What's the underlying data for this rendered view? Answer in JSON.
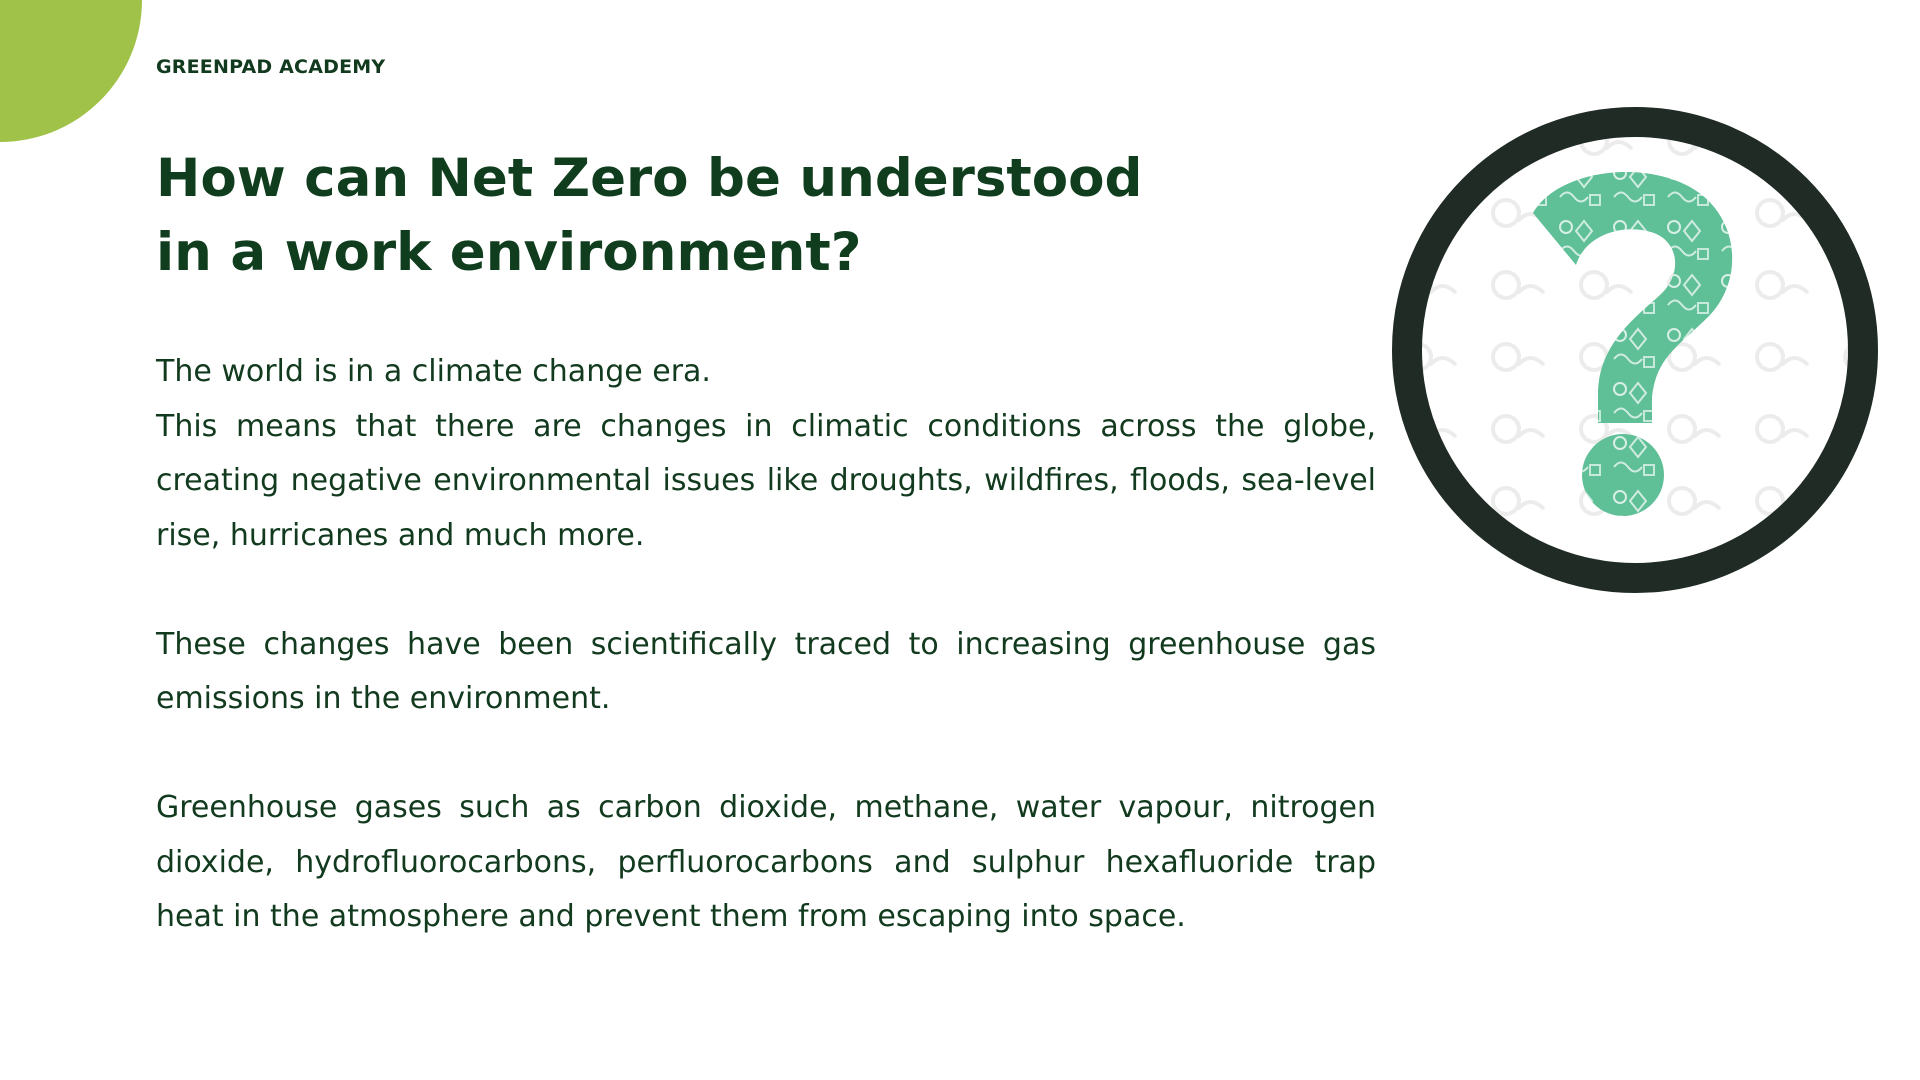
{
  "brand": "GREENPAD ACADEMY",
  "title": "How can Net Zero be understood in a work environment?",
  "paragraphs": {
    "p1_line1": "The world is in a climate change era.",
    "p1_rest": "This means that there are changes in climatic conditions across the globe, creating negative environmental issues like droughts, wildfires, floods, sea-level rise, hurricanes and much more.",
    "p2": "These changes have been scientifically traced to increasing greenhouse gas emissions in the environment.",
    "p3": "Greenhouse gases such as carbon dioxide, methane, water vapour, nitrogen dioxide, hydrofluorocarbons, perfluorocarbons and sulphur hexafluoride trap heat in the atmosphere and prevent them from escaping into space."
  },
  "colors": {
    "accent_green": "#a1c248",
    "title_green": "#0f3d1d",
    "ring_dark": "#1f2b24",
    "question_mark_green": "#5fbf97"
  },
  "icons": {
    "graphic": "question-mark-icon"
  }
}
